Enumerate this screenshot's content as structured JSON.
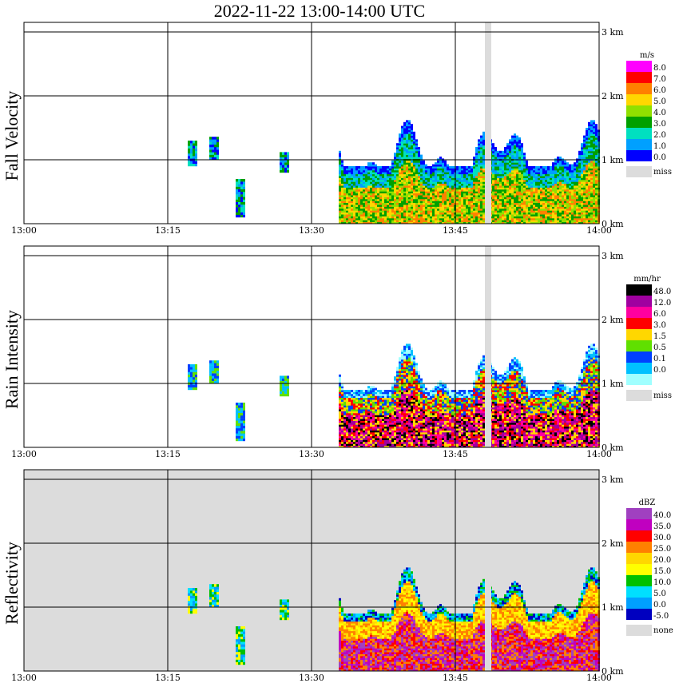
{
  "title": "2022-11-22  13:00-14:00 UTC",
  "chart_data": [
    {
      "type": "heatmap",
      "title": "Fall Velocity",
      "ylabel": "Fall Velocity",
      "x_ticks": [
        "13:00",
        "13:15",
        "13:30",
        "13:45",
        "14:00"
      ],
      "y_ticks": [
        "0 km",
        "1 km",
        "2 km",
        "3 km"
      ],
      "ylim": [
        0,
        3
      ],
      "colorbar": {
        "unit": "m/s",
        "levels": [
          "8.0",
          "7.0",
          "6.0",
          "5.0",
          "4.0",
          "3.0",
          "2.0",
          "1.0",
          "0.0"
        ],
        "colors": [
          "#ff00ff",
          "#ff0000",
          "#ff8000",
          "#ffd700",
          "#90e000",
          "#00a000",
          "#00e0c0",
          "#00a0ff",
          "#0000ff"
        ],
        "missing_label": "miss",
        "missing_color": "#dcdcdc"
      }
    },
    {
      "type": "heatmap",
      "title": "Rain Intensity",
      "ylabel": "Rain Intensity",
      "x_ticks": [
        "13:00",
        "13:15",
        "13:30",
        "13:45",
        "14:00"
      ],
      "y_ticks": [
        "0 km",
        "1 km",
        "2 km",
        "3 km"
      ],
      "ylim": [
        0,
        3
      ],
      "colorbar": {
        "unit": "mm/hr",
        "levels": [
          "48.0",
          "12.0",
          "6.0",
          "3.0",
          "1.5",
          "0.5",
          "0.1",
          "0.0"
        ],
        "colors": [
          "#000000",
          "#a000a0",
          "#ff00a0",
          "#ff0000",
          "#ffd700",
          "#60e000",
          "#0040ff",
          "#00c0ff",
          "#a0ffff"
        ],
        "missing_label": "miss",
        "missing_color": "#dcdcdc"
      }
    },
    {
      "type": "heatmap",
      "title": "Reflectivity",
      "ylabel": "Reflectivity",
      "x_ticks": [
        "13:00",
        "13:15",
        "13:30",
        "13:45",
        "14:00"
      ],
      "y_ticks": [
        "0 km",
        "1 km",
        "2 km",
        "3 km"
      ],
      "ylim": [
        0,
        3
      ],
      "colorbar": {
        "unit": "dBZ",
        "levels": [
          "40.0",
          "35.0",
          "30.0",
          "25.0",
          "20.0",
          "15.0",
          "10.0",
          "5.0",
          "0.0",
          "-5.0"
        ],
        "colors": [
          "#a040c0",
          "#c000c0",
          "#ff0000",
          "#ff8000",
          "#ffd700",
          "#ffff00",
          "#00c000",
          "#00e0ff",
          "#00a0ff",
          "#0000c0"
        ],
        "missing_label": "none",
        "missing_color": "#dcdcdc"
      }
    }
  ]
}
